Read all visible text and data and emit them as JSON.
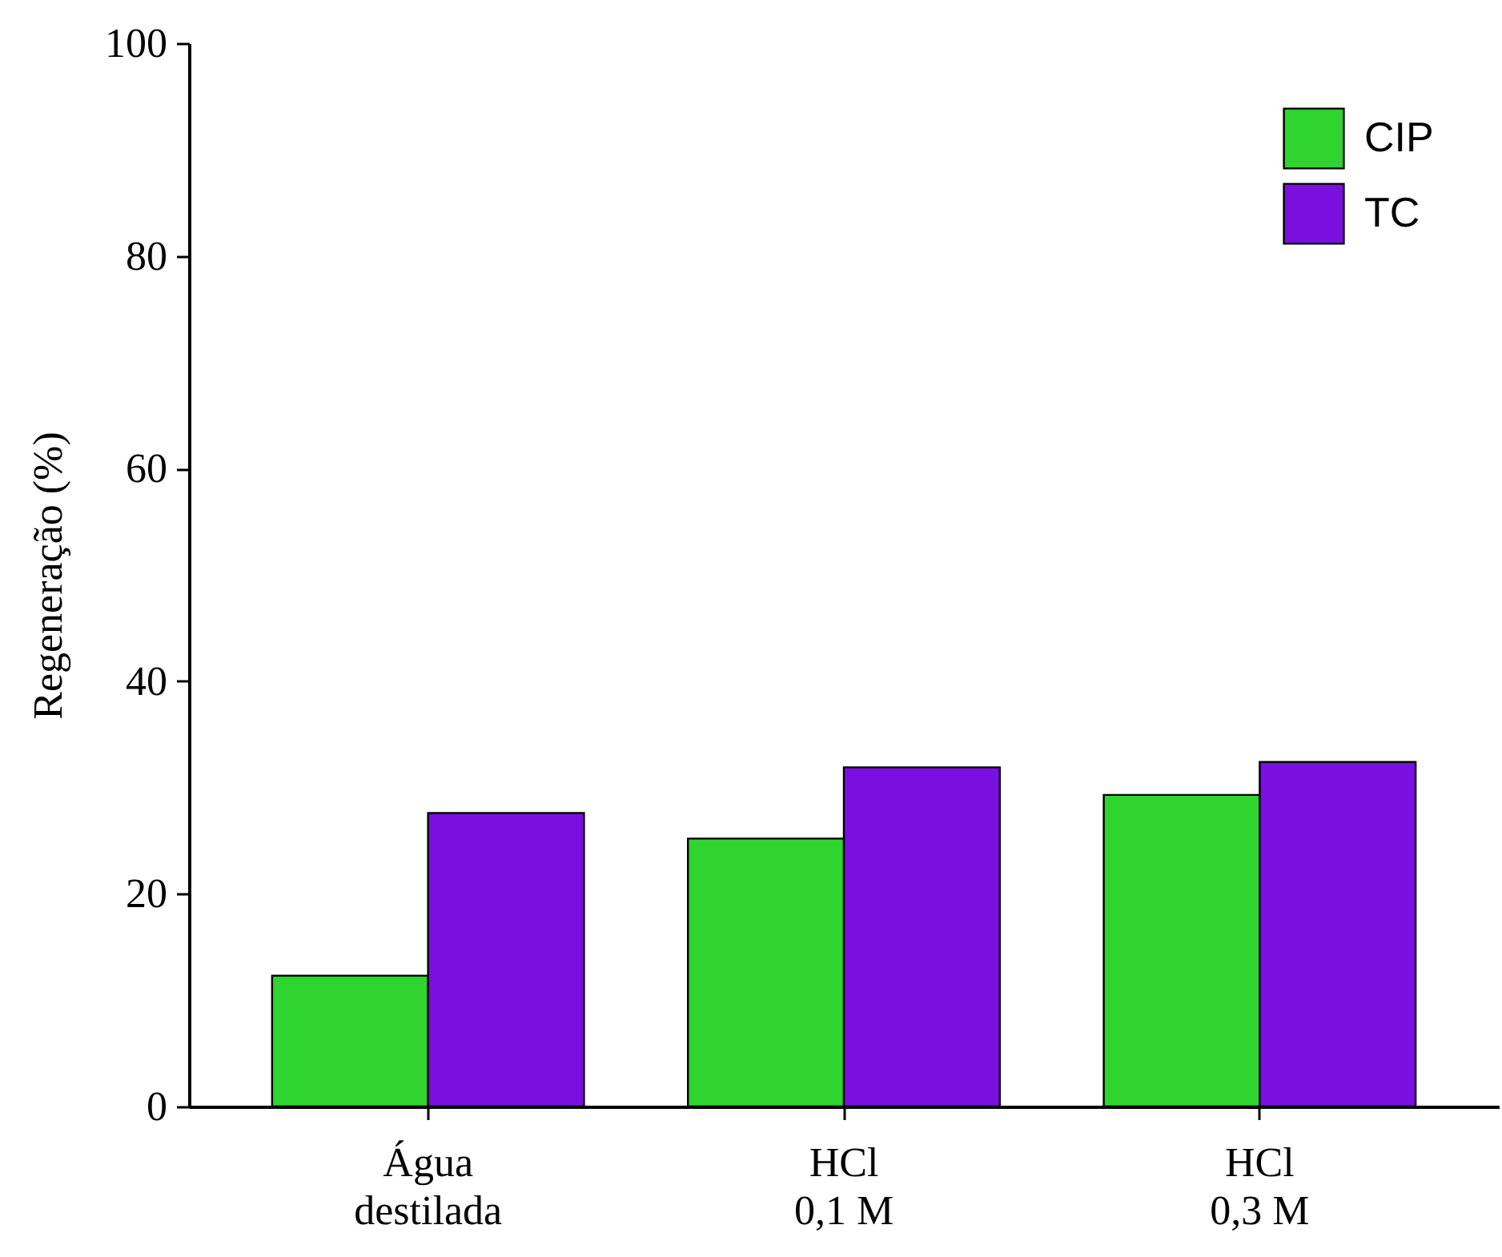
{
  "chart_data": {
    "type": "bar",
    "ylabel": "Regeneração (%)",
    "categories": [
      "Água\ndestilada",
      "HCl\n0,1 M",
      "HCl\n0,3 M"
    ],
    "series": [
      {
        "name": "CIP",
        "color": "#2fd42f",
        "values": [
          12.3,
          25.2,
          29.3
        ]
      },
      {
        "name": "TC",
        "color": "#7a0fe0",
        "values": [
          27.6,
          31.9,
          32.4
        ]
      }
    ],
    "ylim": [
      0,
      100
    ],
    "yticks": [
      0,
      20,
      40,
      60,
      80,
      100
    ],
    "grid": false,
    "legend": "top right"
  }
}
